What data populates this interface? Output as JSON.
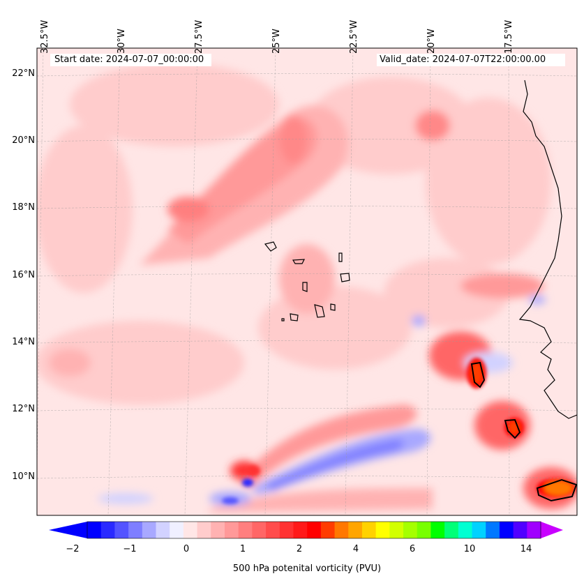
{
  "map": {
    "start_date_text": "Start date: 2024-07-07_00:00:00",
    "valid_date_text": "Valid_date: 2024-07-07T22:00:00.00",
    "longitude_labels": [
      "32.5°W",
      "30°W",
      "27.5°W",
      "25°W",
      "22.5°W",
      "20°W",
      "17.5°W"
    ],
    "latitude_labels": [
      "22°N",
      "20°N",
      "18°N",
      "16°N",
      "14°N",
      "12°N",
      "10°N"
    ],
    "field": "500 hPa potential vorticity",
    "region": "Cape Verde islands and West African coast (Senegal)"
  },
  "colorbar": {
    "label": "500 hPa potenital vorticity (PVU)",
    "tick_labels": [
      "−2",
      "−1",
      "0",
      "1",
      "2",
      "4",
      "6",
      "10",
      "14"
    ],
    "colors": [
      "#0000ff",
      "#2a2aff",
      "#5454ff",
      "#7e7eff",
      "#a8a8ff",
      "#d2d2ff",
      "#f0f0ff",
      "#ffe6e6",
      "#ffcccc",
      "#ffb2b2",
      "#ff9999",
      "#ff7f7f",
      "#ff6666",
      "#ff4c4c",
      "#ff3232",
      "#ff1919",
      "#ff0000",
      "#ff3c00",
      "#ff7800",
      "#ffa500",
      "#ffd200",
      "#ffff00",
      "#d2ff00",
      "#a5ff00",
      "#78ff00",
      "#00ff00",
      "#00ff78",
      "#00ffd2",
      "#00d2ff",
      "#0078ff",
      "#0000ff",
      "#5000ff",
      "#a000ff"
    ],
    "under_color": "#0000ff",
    "over_color": "#c800ff"
  }
}
